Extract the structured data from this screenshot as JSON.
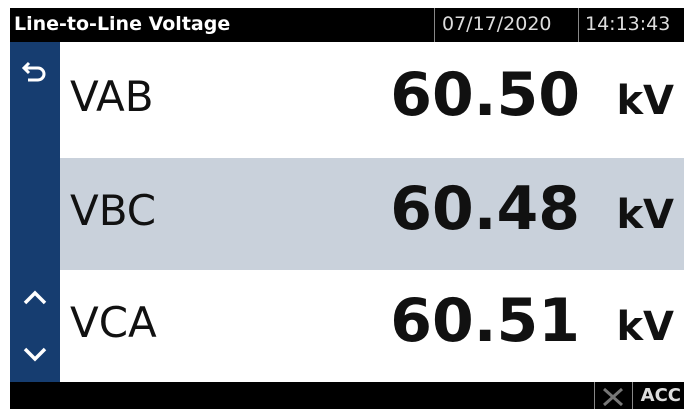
{
  "header": {
    "title": "Line-to-Line Voltage",
    "date": "07/17/2020",
    "time": "14:13:43"
  },
  "rows": [
    {
      "label": "VAB",
      "value": "60.50",
      "unit": "kV"
    },
    {
      "label": "VBC",
      "value": "60.48",
      "unit": "kV"
    },
    {
      "label": "VCA",
      "value": "60.51",
      "unit": "kV"
    }
  ],
  "footer": {
    "status": "ACC"
  }
}
